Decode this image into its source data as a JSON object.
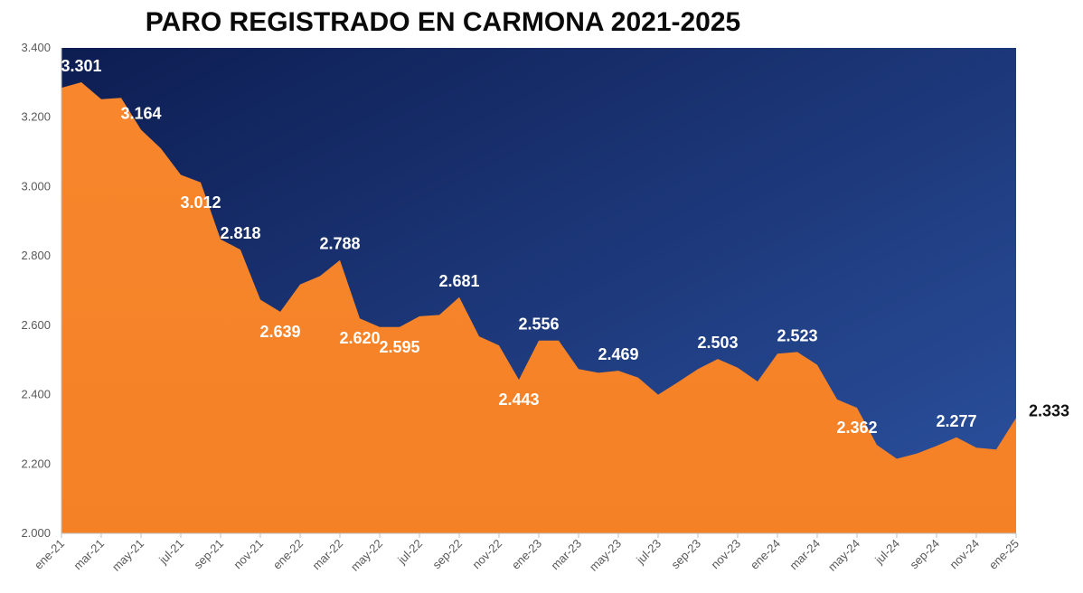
{
  "chart_data": {
    "type": "area",
    "title": "PARO REGISTRADO EN CARMONA 2021-2025",
    "ylim": [
      2000,
      3400
    ],
    "yticks": [
      "2.000",
      "2.200",
      "2.400",
      "2.600",
      "2.800",
      "3.000",
      "3.200",
      "3.400"
    ],
    "x_tick_labels": [
      "ene-21",
      "mar-21",
      "may-21",
      "jul-21",
      "sep-21",
      "nov-21",
      "ene-22",
      "mar-22",
      "may-22",
      "jul-22",
      "sep-22",
      "nov-22",
      "ene-23",
      "mar-23",
      "may-23",
      "jul-23",
      "sep-23",
      "nov-23",
      "ene-24",
      "mar-24",
      "may-24",
      "jul-24",
      "sep-24",
      "nov-24",
      "ene-25"
    ],
    "x": [
      "ene-21",
      "feb-21",
      "mar-21",
      "abr-21",
      "may-21",
      "jun-21",
      "jul-21",
      "ago-21",
      "sep-21",
      "oct-21",
      "nov-21",
      "dic-21",
      "ene-22",
      "feb-22",
      "mar-22",
      "abr-22",
      "may-22",
      "jun-22",
      "jul-22",
      "ago-22",
      "sep-22",
      "oct-22",
      "nov-22",
      "dic-22",
      "ene-23",
      "feb-23",
      "mar-23",
      "abr-23",
      "may-23",
      "jun-23",
      "jul-23",
      "ago-23",
      "sep-23",
      "oct-23",
      "nov-23",
      "dic-23",
      "ene-24",
      "feb-24",
      "mar-24",
      "abr-24",
      "may-24",
      "jun-24",
      "jul-24",
      "ago-24",
      "sep-24",
      "oct-24",
      "nov-24",
      "dic-24",
      "ene-25"
    ],
    "values": [
      3285,
      3301,
      3252,
      3256,
      3164,
      3110,
      3034,
      3012,
      2848,
      2818,
      2674,
      2639,
      2718,
      2742,
      2788,
      2620,
      2595,
      2595,
      2626,
      2630,
      2681,
      2568,
      2542,
      2443,
      2556,
      2556,
      2474,
      2463,
      2469,
      2449,
      2400,
      2436,
      2474,
      2503,
      2478,
      2438,
      2518,
      2523,
      2486,
      2386,
      2362,
      2255,
      2215,
      2230,
      2252,
      2277,
      2247,
      2242,
      2333
    ],
    "data_labels": [
      {
        "index": 1,
        "text": "3.301",
        "color": "#ffffff",
        "pos": "above"
      },
      {
        "index": 4,
        "text": "3.164",
        "color": "#ffffff",
        "pos": "above"
      },
      {
        "index": 7,
        "text": "3.012",
        "color": "#ffffff",
        "pos": "below"
      },
      {
        "index": 9,
        "text": "2.818",
        "color": "#ffffff",
        "pos": "above"
      },
      {
        "index": 11,
        "text": "2.639",
        "color": "#ffffff",
        "pos": "below"
      },
      {
        "index": 14,
        "text": "2.788",
        "color": "#ffffff",
        "pos": "above"
      },
      {
        "index": 15,
        "text": "2.620",
        "color": "#ffffff",
        "pos": "below"
      },
      {
        "index": 17,
        "text": "2.595",
        "color": "#ffffff",
        "pos": "below"
      },
      {
        "index": 20,
        "text": "2.681",
        "color": "#ffffff",
        "pos": "above"
      },
      {
        "index": 23,
        "text": "2.443",
        "color": "#ffffff",
        "pos": "below"
      },
      {
        "index": 24,
        "text": "2.556",
        "color": "#ffffff",
        "pos": "above"
      },
      {
        "index": 28,
        "text": "2.469",
        "color": "#ffffff",
        "pos": "above"
      },
      {
        "index": 33,
        "text": "2.503",
        "color": "#ffffff",
        "pos": "above"
      },
      {
        "index": 37,
        "text": "2.523",
        "color": "#ffffff",
        "pos": "above"
      },
      {
        "index": 40,
        "text": "2.362",
        "color": "#ffffff",
        "pos": "below"
      },
      {
        "index": 45,
        "text": "2.277",
        "color": "#ffffff",
        "pos": "above"
      },
      {
        "index": 48,
        "text": "2.333",
        "color": "#111111",
        "pos": "right"
      }
    ],
    "colors": {
      "area": "#f5822a",
      "background_top": "#0d1f55",
      "background_bottom": "#2a4e9a",
      "axis": "#bfbfbf"
    },
    "grid": false,
    "legend": "none"
  }
}
